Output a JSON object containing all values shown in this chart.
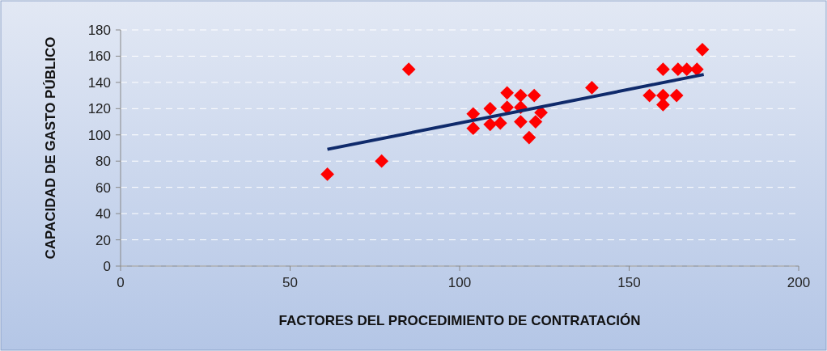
{
  "chart_data": {
    "type": "scatter",
    "xlabel": "FACTORES DEL PROCEDIMIENTO DE CONTRATACIÓN",
    "ylabel": "CAPACIDAD DE GASTO PÚBLICO",
    "xlim": [
      0,
      200
    ],
    "xticks": [
      0,
      50,
      100,
      150,
      200
    ],
    "ylim": [
      0,
      180
    ],
    "yticks": [
      0,
      20,
      40,
      60,
      80,
      100,
      120,
      140,
      160,
      180
    ],
    "grid": "y",
    "series": [
      {
        "marker": "diamond",
        "color": "#ff0000",
        "x": [
          61,
          77,
          85,
          104,
          104,
          109,
          109,
          112,
          114,
          114,
          118,
          118,
          118,
          120.5,
          122,
          122.4,
          124,
          139,
          156,
          160,
          160,
          160,
          164,
          164.4,
          167,
          170,
          171.6
        ],
        "values": [
          70,
          80,
          150,
          116,
          105,
          120,
          108,
          109,
          132,
          121,
          130,
          121,
          110,
          98,
          130,
          110,
          117,
          136,
          130,
          123,
          130,
          150,
          130,
          150,
          150,
          150,
          165
        ]
      },
      {
        "type": "line",
        "color": "#0f2a6b",
        "x": [
          61,
          172
        ],
        "values": [
          89,
          146
        ]
      }
    ]
  }
}
